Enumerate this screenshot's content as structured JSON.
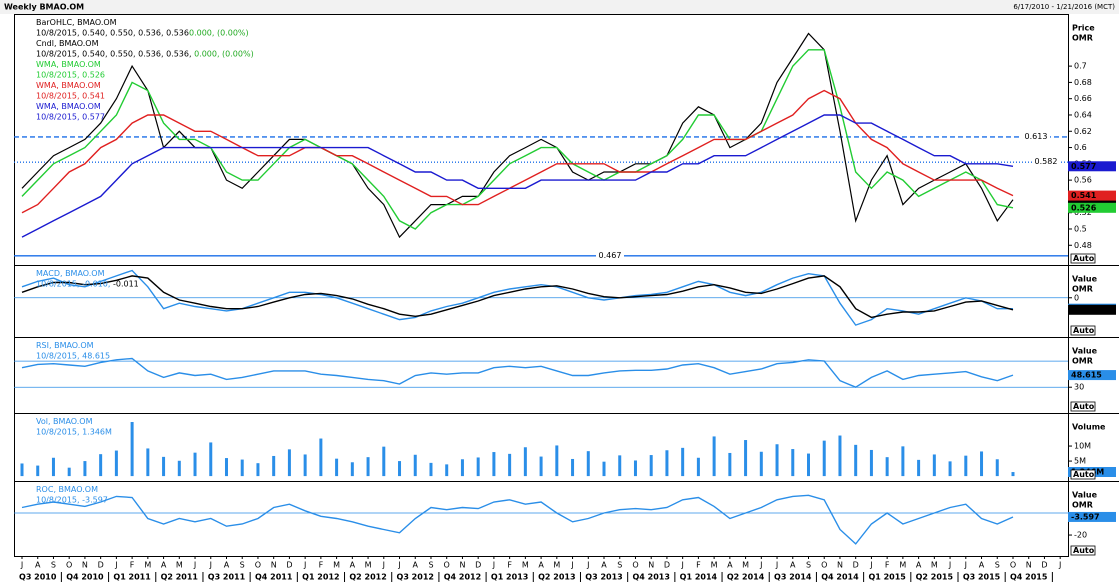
{
  "header": {
    "title": "Weekly BMAO.OM",
    "range": "6/17/2010 - 1/21/2016 (MCT)",
    "auto": "Auto"
  },
  "chart_data": [
    {
      "type": "line",
      "ylabel": [
        "Price",
        "OMR"
      ],
      "ylim": [
        0.457,
        0.764
      ],
      "yticks": [
        0.48,
        0.5,
        0.52,
        0.54,
        0.56,
        0.58,
        0.6,
        0.62,
        0.64,
        0.66,
        0.68,
        0.7
      ],
      "levels": [
        {
          "value": 0.613,
          "style": "dashed",
          "color": "#1a6ee8"
        },
        {
          "value": 0.582,
          "style": "dotted",
          "color": "#1a6ee8"
        },
        {
          "value": 0.467,
          "style": "solid",
          "color": "#1a6ee8"
        }
      ],
      "legend": [
        [
          {
            "text": "BarOHLC, BMAO.OM",
            "color": "#000000"
          }
        ],
        [
          {
            "text": "10/8/2015, 0.540, 0.550, 0.536, 0.536",
            "color": "#000000"
          },
          {
            "text": "0.000, (0.00%)",
            "color": "#22aa22"
          }
        ],
        [
          {
            "text": "Cndl, BMAO.OM",
            "color": "#000000"
          }
        ],
        [
          {
            "text": "10/8/2015, 0.540, 0.550, 0.536, 0.536, ",
            "color": "#000000"
          },
          {
            "text": "0.000, (0.00%)",
            "color": "#22aa22"
          }
        ],
        [
          {
            "text": "WMA, BMAO.OM",
            "color": "#22cc33"
          }
        ],
        [
          {
            "text": "10/8/2015, 0.526",
            "color": "#22cc33"
          }
        ],
        [
          {
            "text": "WMA, BMAO.OM",
            "color": "#e02020"
          }
        ],
        [
          {
            "text": "10/8/2015, 0.541",
            "color": "#e02020"
          }
        ],
        [
          {
            "text": "WMA, BMAO.OM",
            "color": "#1a1ad0"
          }
        ],
        [
          {
            "text": "10/8/2015, 0.577",
            "color": "#1a1ad0"
          }
        ]
      ],
      "tags": [
        "0.536",
        "0.526",
        "0.541",
        "0.577"
      ],
      "series": [
        {
          "color": "#000000",
          "values": [
            0.55,
            0.57,
            0.59,
            0.6,
            0.61,
            0.63,
            0.66,
            0.7,
            0.67,
            0.6,
            0.62,
            0.6,
            0.6,
            0.56,
            0.55,
            0.57,
            0.59,
            0.61,
            0.61,
            0.6,
            0.59,
            0.58,
            0.55,
            0.53,
            0.49,
            0.51,
            0.53,
            0.53,
            0.54,
            0.54,
            0.57,
            0.59,
            0.6,
            0.61,
            0.6,
            0.57,
            0.56,
            0.57,
            0.57,
            0.58,
            0.58,
            0.59,
            0.63,
            0.65,
            0.64,
            0.6,
            0.61,
            0.63,
            0.68,
            0.71,
            0.74,
            0.72,
            0.62,
            0.51,
            0.56,
            0.59,
            0.53,
            0.55,
            0.56,
            0.57,
            0.58,
            0.55,
            0.51,
            0.536,
            null,
            null,
            null
          ]
        },
        {
          "color": "#22cc33",
          "values": [
            0.54,
            0.56,
            0.58,
            0.59,
            0.6,
            0.62,
            0.64,
            0.68,
            0.67,
            0.63,
            0.61,
            0.61,
            0.6,
            0.57,
            0.56,
            0.56,
            0.58,
            0.6,
            0.61,
            0.6,
            0.59,
            0.58,
            0.56,
            0.54,
            0.51,
            0.5,
            0.52,
            0.53,
            0.53,
            0.54,
            0.56,
            0.58,
            0.59,
            0.6,
            0.6,
            0.58,
            0.57,
            0.56,
            0.57,
            0.57,
            0.58,
            0.59,
            0.61,
            0.64,
            0.64,
            0.61,
            0.61,
            0.62,
            0.66,
            0.7,
            0.72,
            0.72,
            0.65,
            0.57,
            0.55,
            0.57,
            0.56,
            0.54,
            0.55,
            0.56,
            0.57,
            0.56,
            0.53,
            0.526,
            null,
            null,
            null
          ]
        },
        {
          "color": "#e02020",
          "values": [
            0.52,
            0.53,
            0.55,
            0.57,
            0.58,
            0.6,
            0.61,
            0.63,
            0.64,
            0.64,
            0.63,
            0.62,
            0.62,
            0.61,
            0.6,
            0.59,
            0.59,
            0.59,
            0.6,
            0.6,
            0.59,
            0.59,
            0.58,
            0.57,
            0.56,
            0.55,
            0.54,
            0.54,
            0.53,
            0.53,
            0.54,
            0.55,
            0.56,
            0.57,
            0.58,
            0.58,
            0.58,
            0.58,
            0.57,
            0.57,
            0.57,
            0.58,
            0.59,
            0.6,
            0.61,
            0.61,
            0.61,
            0.62,
            0.63,
            0.64,
            0.66,
            0.67,
            0.66,
            0.63,
            0.61,
            0.6,
            0.58,
            0.57,
            0.56,
            0.56,
            0.56,
            0.56,
            0.55,
            0.541,
            null,
            null,
            null
          ]
        },
        {
          "color": "#1a1ad0",
          "values": [
            0.49,
            0.5,
            0.51,
            0.52,
            0.53,
            0.54,
            0.56,
            0.58,
            0.59,
            0.6,
            0.6,
            0.6,
            0.6,
            0.6,
            0.6,
            0.6,
            0.6,
            0.6,
            0.6,
            0.6,
            0.6,
            0.6,
            0.6,
            0.59,
            0.58,
            0.57,
            0.57,
            0.56,
            0.56,
            0.55,
            0.55,
            0.55,
            0.55,
            0.56,
            0.56,
            0.56,
            0.56,
            0.56,
            0.56,
            0.56,
            0.57,
            0.57,
            0.58,
            0.58,
            0.59,
            0.59,
            0.59,
            0.6,
            0.61,
            0.62,
            0.63,
            0.64,
            0.64,
            0.63,
            0.63,
            0.62,
            0.61,
            0.6,
            0.59,
            0.59,
            0.58,
            0.58,
            0.58,
            0.577,
            null,
            null,
            null
          ]
        }
      ]
    },
    {
      "type": "line",
      "ylabel": [
        "Value",
        "OMR"
      ],
      "ylim": [
        -0.035,
        0.03
      ],
      "yticks": [
        0
      ],
      "reference_lines": [
        0
      ],
      "legend": [
        [
          {
            "text": "MACD, BMAO.OM",
            "color": "#2a8ee8"
          }
        ],
        [
          {
            "text": "10/8/2015, -0.010, ",
            "color": "#2a8ee8"
          },
          {
            "text": "-0.011",
            "color": "#000000"
          }
        ]
      ],
      "tags": [
        "-0.010",
        "-0.011"
      ],
      "series": [
        {
          "color": "#2a8ee8",
          "values": [
            0.01,
            0.015,
            0.018,
            0.012,
            0.01,
            0.015,
            0.02,
            0.025,
            0.01,
            -0.01,
            -0.005,
            -0.008,
            -0.01,
            -0.012,
            -0.01,
            -0.005,
            0,
            0.005,
            0.005,
            0.003,
            0,
            -0.005,
            -0.01,
            -0.015,
            -0.02,
            -0.018,
            -0.012,
            -0.008,
            -0.005,
            0,
            0.005,
            0.008,
            0.01,
            0.012,
            0.01,
            0.005,
            0,
            -0.002,
            0,
            0.002,
            0.003,
            0.005,
            0.01,
            0.015,
            0.012,
            0.005,
            0.002,
            0.005,
            0.012,
            0.018,
            0.022,
            0.02,
            -0.005,
            -0.025,
            -0.02,
            -0.01,
            -0.012,
            -0.015,
            -0.01,
            -0.005,
            0,
            -0.003,
            -0.01,
            -0.01,
            null,
            null,
            null
          ]
        },
        {
          "color": "#000000",
          "values": [
            0.005,
            0.01,
            0.014,
            0.014,
            0.012,
            0.013,
            0.016,
            0.02,
            0.018,
            0.005,
            -0.002,
            -0.005,
            -0.008,
            -0.01,
            -0.01,
            -0.008,
            -0.004,
            0,
            0.003,
            0.004,
            0.002,
            -0.001,
            -0.006,
            -0.01,
            -0.015,
            -0.017,
            -0.015,
            -0.011,
            -0.007,
            -0.003,
            0.002,
            0.005,
            0.008,
            0.01,
            0.011,
            0.008,
            0.004,
            0.001,
            0,
            0.001,
            0.002,
            0.003,
            0.006,
            0.01,
            0.012,
            0.009,
            0.005,
            0.004,
            0.008,
            0.013,
            0.018,
            0.02,
            0.01,
            -0.01,
            -0.018,
            -0.015,
            -0.013,
            -0.013,
            -0.012,
            -0.008,
            -0.004,
            -0.003,
            -0.007,
            -0.011,
            null,
            null,
            null
          ]
        }
      ]
    },
    {
      "type": "line",
      "ylabel": [
        "Value",
        "OMR"
      ],
      "ylim": [
        -8,
        107
      ],
      "yticks": [
        30
      ],
      "reference_lines": [
        30,
        70
      ],
      "legend": [
        [
          {
            "text": "RSI, BMAO.OM",
            "color": "#2a8ee8"
          }
        ],
        [
          {
            "text": "10/8/2015, 48.615",
            "color": "#2a8ee8"
          }
        ]
      ],
      "tags": [
        "48.615"
      ],
      "series": [
        {
          "color": "#2a8ee8",
          "values": [
            60,
            65,
            66,
            64,
            62,
            68,
            72,
            74,
            55,
            45,
            52,
            48,
            50,
            42,
            45,
            50,
            55,
            55,
            55,
            50,
            48,
            45,
            42,
            40,
            35,
            48,
            52,
            50,
            52,
            52,
            60,
            62,
            60,
            62,
            55,
            48,
            48,
            52,
            55,
            56,
            56,
            58,
            64,
            66,
            60,
            50,
            54,
            58,
            66,
            68,
            72,
            70,
            40,
            30,
            45,
            55,
            42,
            48,
            50,
            52,
            54,
            46,
            40,
            48.615,
            null,
            null,
            null
          ]
        }
      ]
    },
    {
      "type": "bar",
      "ylabel": [
        "Volume"
      ],
      "ylim": [
        -1300000,
        21000000
      ],
      "yticks": [
        {
          "value": 5000000,
          "label": "5M"
        },
        {
          "value": 10000000,
          "label": "10M"
        }
      ],
      "legend": [
        [
          {
            "text": "Vol, BMAO.OM",
            "color": "#2a8ee8"
          }
        ],
        [
          {
            "text": "10/8/2015, 1.346M",
            "color": "#2a8ee8"
          }
        ]
      ],
      "tags": [
        "1.346M"
      ],
      "series": [
        {
          "color": "#2a8ee8",
          "values": [
            4200000,
            3500000,
            6100000,
            2800000,
            5000000,
            7300000,
            8500000,
            18000000,
            9200000,
            6400000,
            5100000,
            7800000,
            11200000,
            6000000,
            5500000,
            4300000,
            6700000,
            8900000,
            7200000,
            12500000,
            5800000,
            4600000,
            6300000,
            9800000,
            5000000,
            7100000,
            4400000,
            3900000,
            5600000,
            6200000,
            8000000,
            7400000,
            9600000,
            6500000,
            10200000,
            5700000,
            8300000,
            4800000,
            6900000,
            5200000,
            7000000,
            8600000,
            9400000,
            6100000,
            13200000,
            7700000,
            12000000,
            8100000,
            10600000,
            9000000,
            7500000,
            11800000,
            13500000,
            10400000,
            8700000,
            6300000,
            9900000,
            5400000,
            7200000,
            4900000,
            6800000,
            8200000,
            5600000,
            1346000,
            null,
            null,
            null
          ]
        }
      ]
    },
    {
      "type": "line",
      "ylabel": [
        "Value",
        "OMR"
      ],
      "ylim": [
        -39,
        29
      ],
      "yticks": [
        -20
      ],
      "reference_lines": [
        0
      ],
      "legend": [
        [
          {
            "text": "ROC, BMAO.OM",
            "color": "#2a8ee8"
          }
        ],
        [
          {
            "text": "10/8/2015, -3.597",
            "color": "#2a8ee8"
          }
        ]
      ],
      "tags": [
        "-3.597"
      ],
      "categories": [
        "J",
        "A",
        "S",
        "O",
        "N",
        "D",
        "J",
        "F",
        "M",
        "A",
        "M",
        "J",
        "J",
        "A",
        "S",
        "O",
        "N",
        "D",
        "J",
        "F",
        "M",
        "A",
        "M",
        "J",
        "J",
        "A",
        "S",
        "O",
        "N",
        "D",
        "J",
        "F",
        "M",
        "A",
        "M",
        "J",
        "J",
        "A",
        "S",
        "O",
        "N",
        "D",
        "J",
        "F",
        "M",
        "A",
        "M",
        "J",
        "J",
        "A",
        "S",
        "O",
        "N",
        "D",
        "J",
        "F",
        "M",
        "A",
        "M",
        "J",
        "J",
        "A",
        "S",
        "O",
        "N",
        "D",
        "J"
      ],
      "quarters": [
        "Q3 2010",
        "Q4 2010",
        "Q1 2011",
        "Q2 2011",
        "Q3 2011",
        "Q4 2011",
        "Q1 2012",
        "Q2 2012",
        "Q3 2012",
        "Q4 2012",
        "Q1 2013",
        "Q2 2013",
        "Q3 2013",
        "Q4 2013",
        "Q1 2014",
        "Q2 2014",
        "Q3 2014",
        "Q4 2014",
        "Q1 2015",
        "Q2 2015",
        "Q3 2015",
        "Q4 2015"
      ],
      "series": [
        {
          "color": "#2a8ee8",
          "values": [
            5,
            8,
            10,
            8,
            6,
            10,
            15,
            14,
            -5,
            -10,
            -5,
            -8,
            -5,
            -12,
            -10,
            -5,
            5,
            8,
            2,
            -3,
            -5,
            -8,
            -12,
            -15,
            -18,
            -5,
            5,
            3,
            5,
            4,
            10,
            12,
            8,
            10,
            0,
            -8,
            -5,
            0,
            3,
            4,
            3,
            5,
            12,
            14,
            6,
            -5,
            0,
            5,
            12,
            15,
            16,
            12,
            -15,
            -28,
            -10,
            0,
            -10,
            -5,
            0,
            5,
            8,
            -5,
            -10,
            -3.597,
            null,
            null,
            null
          ]
        }
      ]
    }
  ]
}
